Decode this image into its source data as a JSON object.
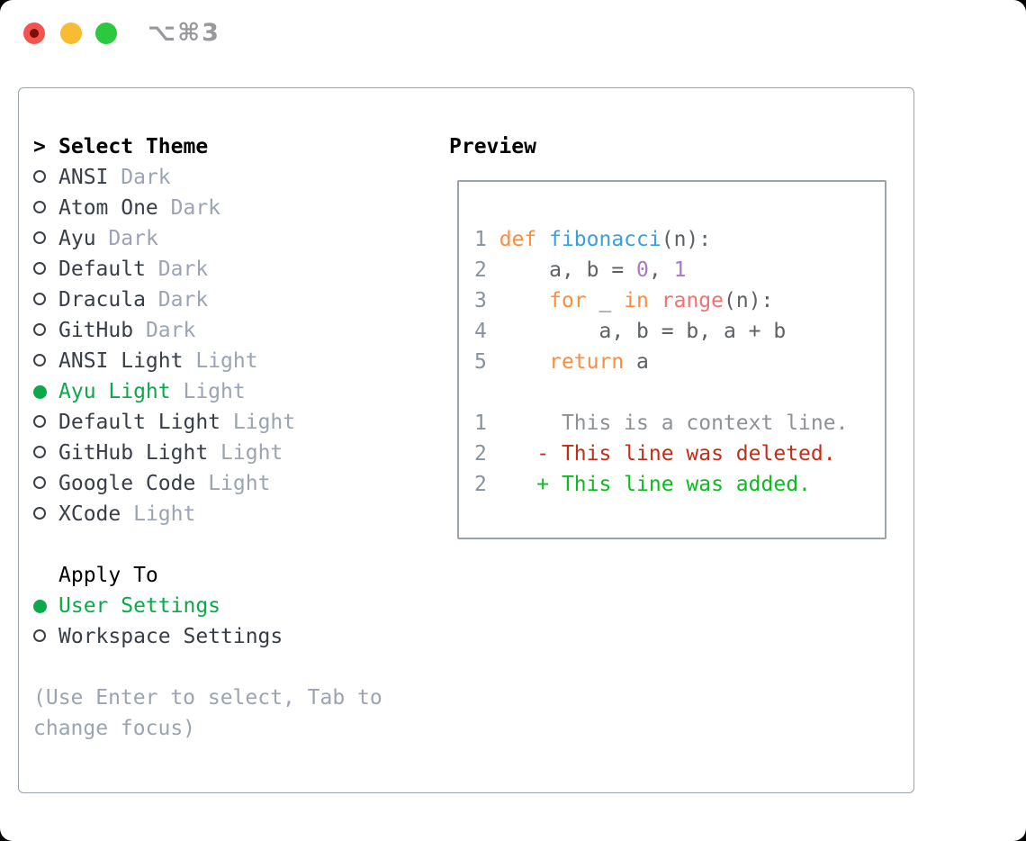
{
  "window": {
    "title": "⌥⌘3",
    "controls": [
      {
        "name": "close"
      },
      {
        "name": "minimize"
      },
      {
        "name": "zoom"
      }
    ]
  },
  "theme_picker": {
    "prompt": ">",
    "header": "Select Theme",
    "items": [
      {
        "name": "ANSI",
        "variant": "Dark",
        "selected": false
      },
      {
        "name": "Atom One",
        "variant": "Dark",
        "selected": false
      },
      {
        "name": "Ayu",
        "variant": "Dark",
        "selected": false
      },
      {
        "name": "Default",
        "variant": "Dark",
        "selected": false
      },
      {
        "name": "Dracula",
        "variant": "Dark",
        "selected": false
      },
      {
        "name": "GitHub",
        "variant": "Dark",
        "selected": false
      },
      {
        "name": "ANSI Light",
        "variant": "Light",
        "selected": false
      },
      {
        "name": "Ayu Light",
        "variant": "Light",
        "selected": true
      },
      {
        "name": "Default Light",
        "variant": "Light",
        "selected": false
      },
      {
        "name": "GitHub Light",
        "variant": "Light",
        "selected": false
      },
      {
        "name": "Google Code",
        "variant": "Light",
        "selected": false
      },
      {
        "name": "XCode",
        "variant": "Light",
        "selected": false
      }
    ],
    "apply_to": {
      "header": "Apply To",
      "options": [
        {
          "name": "User Settings",
          "selected": true
        },
        {
          "name": "Workspace Settings",
          "selected": false
        }
      ]
    },
    "hint": "(Use Enter to select, Tab to change focus)"
  },
  "preview": {
    "header": "Preview",
    "code_lines": [
      [
        {
          "t": "1 ",
          "c": "num"
        },
        {
          "t": "def ",
          "c": "kw"
        },
        {
          "t": "fibonacci",
          "c": "fn"
        },
        {
          "t": "(n):",
          "c": "fg"
        }
      ],
      [
        {
          "t": "2 ",
          "c": "num"
        },
        {
          "t": "    a, b = ",
          "c": "fg"
        },
        {
          "t": "0",
          "c": "const"
        },
        {
          "t": ", ",
          "c": "fg"
        },
        {
          "t": "1",
          "c": "const"
        }
      ],
      [
        {
          "t": "3 ",
          "c": "num"
        },
        {
          "t": "    ",
          "c": "fg"
        },
        {
          "t": "for",
          "c": "kw"
        },
        {
          "t": " _ ",
          "c": "fg"
        },
        {
          "t": "in",
          "c": "kw"
        },
        {
          "t": " ",
          "c": "fg"
        },
        {
          "t": "range",
          "c": "call"
        },
        {
          "t": "(n):",
          "c": "fg"
        }
      ],
      [
        {
          "t": "4 ",
          "c": "num"
        },
        {
          "t": "        a, b = b, a + b",
          "c": "fg"
        }
      ],
      [
        {
          "t": "5 ",
          "c": "num"
        },
        {
          "t": "    ",
          "c": "fg"
        },
        {
          "t": "return",
          "c": "kw"
        },
        {
          "t": " a",
          "c": "fg"
        }
      ],
      [],
      [
        {
          "t": "1 ",
          "c": "num"
        },
        {
          "t": "     This is a context line.",
          "c": "ctx"
        }
      ],
      [
        {
          "t": "2 ",
          "c": "num"
        },
        {
          "t": "   - This line was deleted.",
          "c": "del"
        }
      ],
      [
        {
          "t": "2 ",
          "c": "num"
        },
        {
          "t": "   + This line was added.",
          "c": "add"
        }
      ]
    ]
  },
  "colors": {
    "ui_green": "#0CA94A",
    "header_text": "#000000",
    "item_text": "#383E47",
    "muted": "#9AA4B2",
    "panel_border": "#9AA2AE",
    "code_fg": "#5C6166",
    "line_number": "#8792A1",
    "keyword": "#FA8D3E",
    "function": "#399EE6",
    "constant": "#A37ACC",
    "call": "#F07171",
    "context": "#8E9196",
    "deleted": "#C22D17",
    "added": "#0ABC1E",
    "titlebar_text": "#98989D",
    "traffic_close": "#F2544E",
    "traffic_close_dot": "#7D0D07",
    "traffic_minimize": "#F8BC33",
    "traffic_zoom": "#2BC840"
  }
}
